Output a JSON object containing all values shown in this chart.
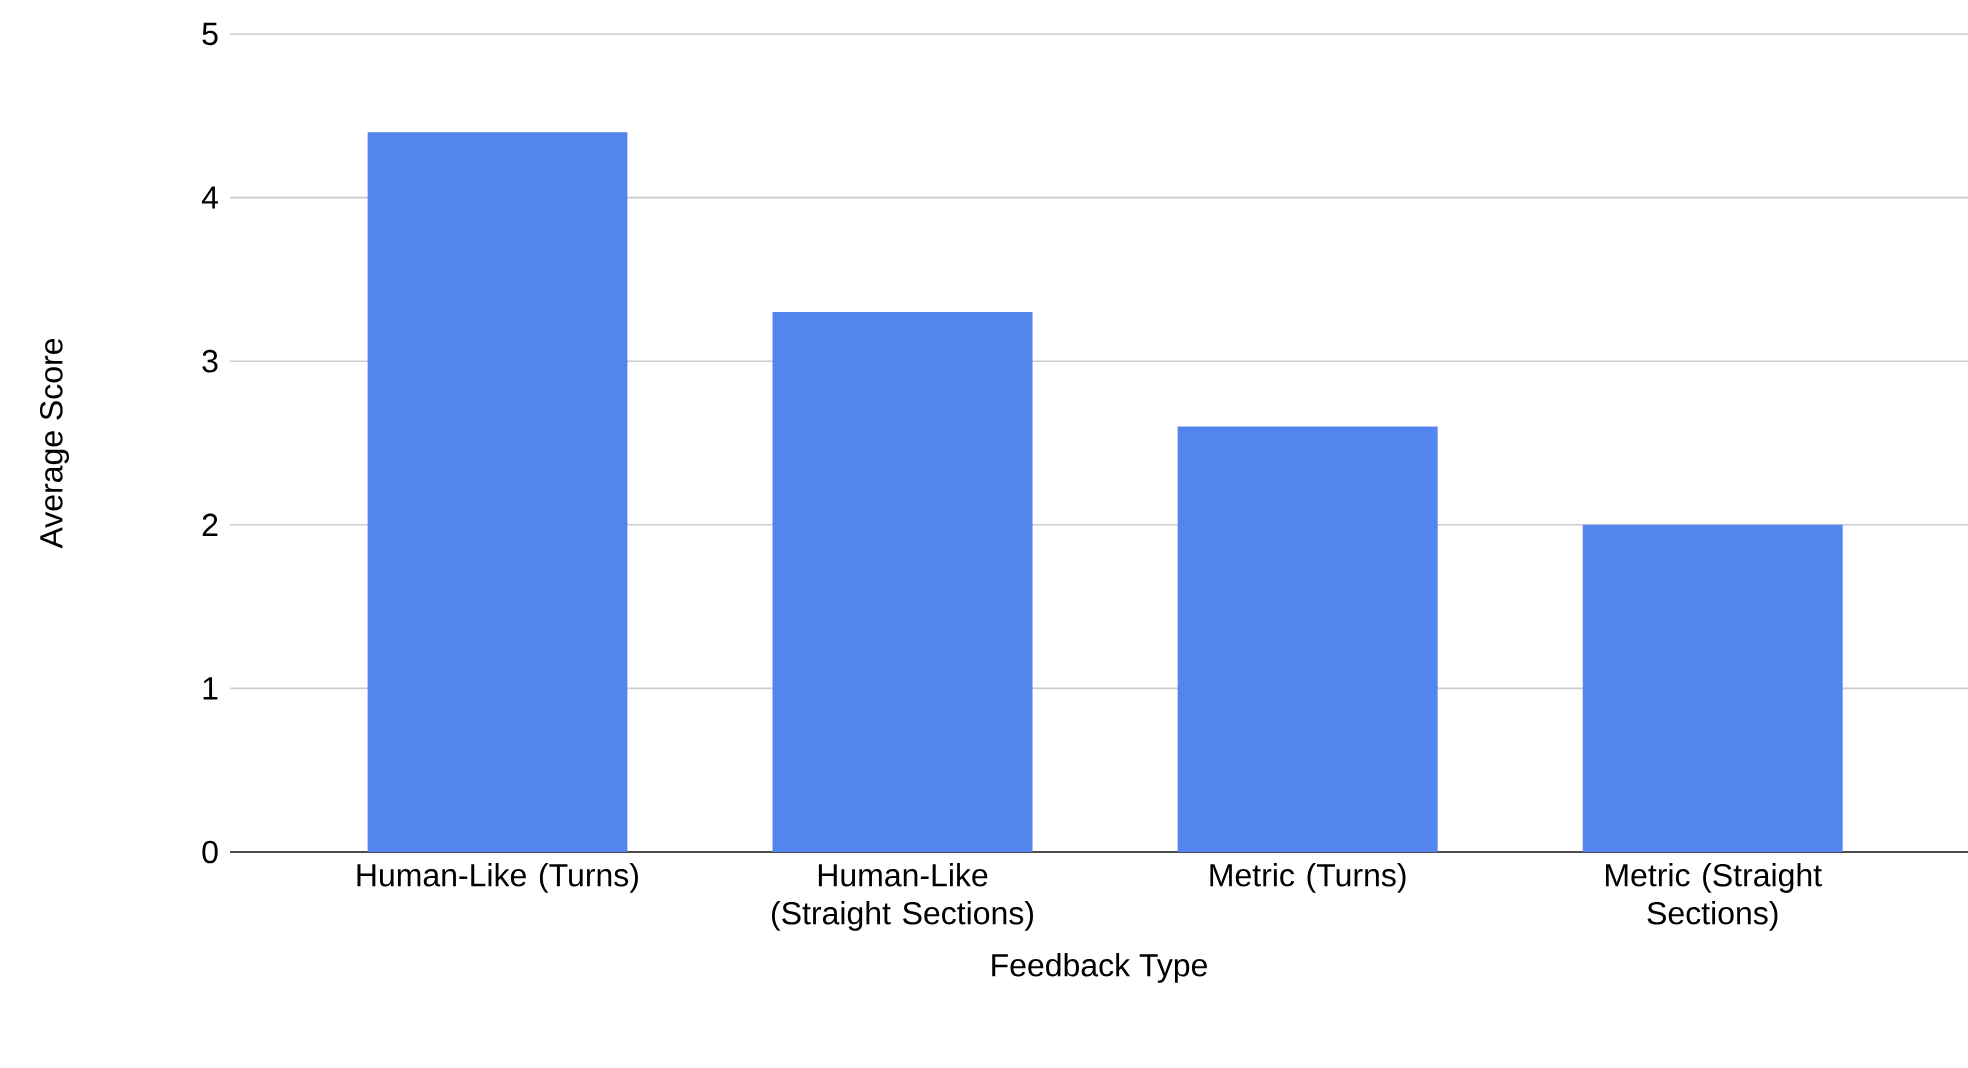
{
  "chart_data": {
    "type": "bar",
    "categories": [
      "Human-Like (Turns)",
      "Human-Like (Straight Sections)",
      "Metric (Turns)",
      "Metric (Straight Sections)"
    ],
    "values": [
      4.4,
      3.3,
      2.6,
      2.0
    ],
    "color": "#5484ed",
    "xlabel": "Feedback Type",
    "ylabel": "Average Score",
    "ylim": [
      0,
      5
    ],
    "yticks": [
      0,
      1,
      2,
      3,
      4,
      5
    ],
    "grid": "y"
  }
}
